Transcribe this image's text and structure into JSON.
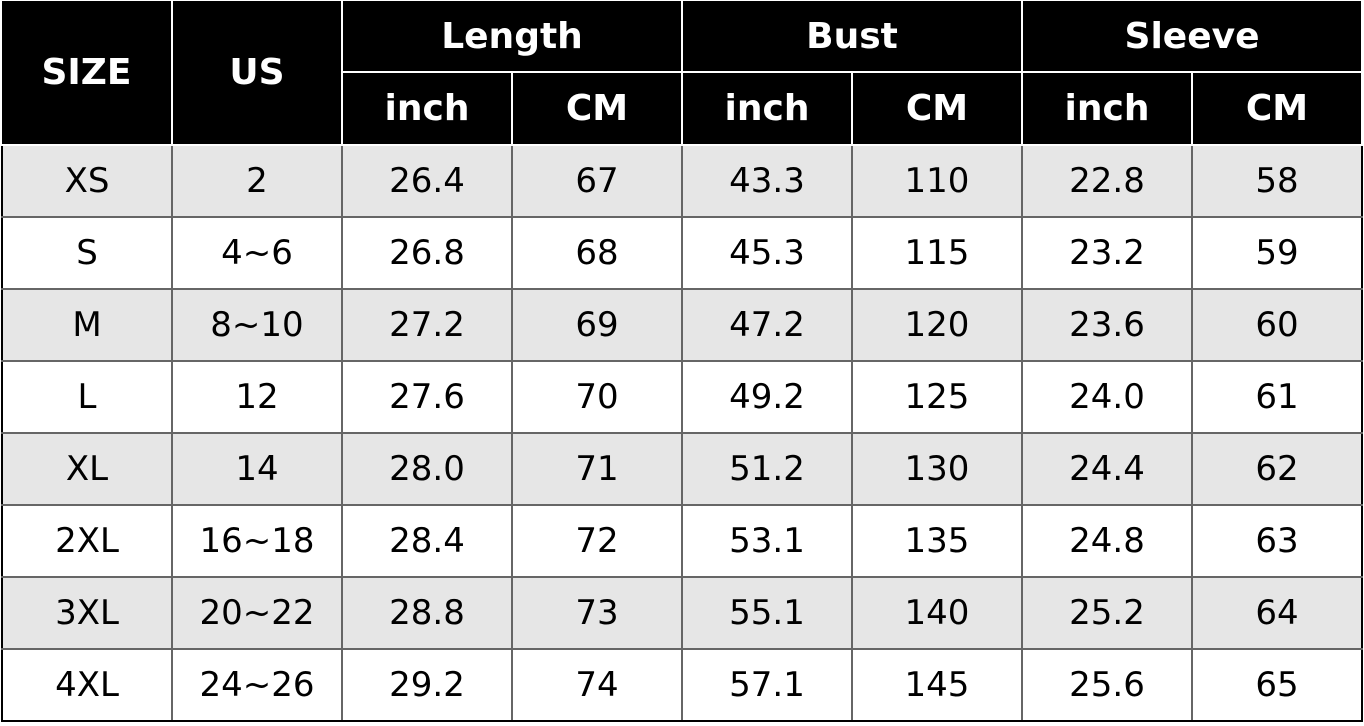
{
  "header": {
    "size": "SIZE",
    "us": "US",
    "groups": [
      "Length",
      "Bust",
      "Sleeve"
    ],
    "units": [
      "inch",
      "CM",
      "inch",
      "CM",
      "inch",
      "CM"
    ]
  },
  "rows": [
    [
      "XS",
      "2",
      "26.4",
      "67",
      "43.3",
      "110",
      "22.8",
      "58"
    ],
    [
      "S",
      "4~6",
      "26.8",
      "68",
      "45.3",
      "115",
      "23.2",
      "59"
    ],
    [
      "M",
      "8~10",
      "27.2",
      "69",
      "47.2",
      "120",
      "23.6",
      "60"
    ],
    [
      "L",
      "12",
      "27.6",
      "70",
      "49.2",
      "125",
      "24.0",
      "61"
    ],
    [
      "XL",
      "14",
      "28.0",
      "71",
      "51.2",
      "130",
      "24.4",
      "62"
    ],
    [
      "2XL",
      "16~18",
      "28.4",
      "72",
      "53.1",
      "135",
      "24.8",
      "63"
    ],
    [
      "3XL",
      "20~22",
      "28.8",
      "73",
      "55.1",
      "140",
      "25.2",
      "64"
    ],
    [
      "4XL",
      "24~26",
      "29.2",
      "74",
      "57.1",
      "145",
      "25.6",
      "65"
    ]
  ],
  "colors": {
    "header_bg": "#000000",
    "alt_row_bg": "#e6e6e6"
  }
}
